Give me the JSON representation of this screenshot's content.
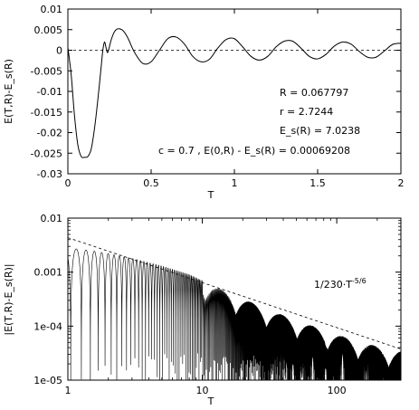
{
  "chart_data": [
    {
      "type": "line",
      "xlabel": "T",
      "ylabel": "E(T,R)-E_s(R)",
      "xlim": [
        0,
        2
      ],
      "ylim": [
        -0.03,
        0.01
      ],
      "xticks": [
        0,
        0.5,
        1,
        1.5,
        2
      ],
      "xtick_labels": [
        "0",
        "0.5",
        "1",
        "1.5",
        "2"
      ],
      "yticks": [
        0.01,
        0.005,
        0,
        -0.005,
        -0.01,
        -0.015,
        -0.02,
        -0.025,
        -0.03
      ],
      "ytick_labels": [
        "0.01",
        "0.005",
        "0",
        "-0.005",
        "-0.01",
        "-0.015",
        "-0.02",
        "-0.025",
        "-0.03"
      ],
      "grid": false,
      "reference_line": {
        "y": 0,
        "style": "dashed"
      },
      "series": [
        {
          "x": [
            0,
            0.02,
            0.04,
            0.06,
            0.08,
            0.1,
            0.12,
            0.14,
            0.16,
            0.18,
            0.2,
            0.21,
            0.22,
            0.23,
            0.24,
            0.26,
            0.28,
            0.3,
            0.33,
            0.36,
            0.4,
            0.45,
            0.5,
            0.55,
            0.6,
            0.65,
            0.7,
            0.75,
            0.8,
            0.85,
            0.9,
            0.95,
            1.0,
            1.05,
            1.1,
            1.15,
            1.2,
            1.25,
            1.3,
            1.35,
            1.4,
            1.45,
            1.5,
            1.55,
            1.6,
            1.65,
            1.7,
            1.75,
            1.8,
            1.85,
            1.9,
            1.95,
            2.0
          ],
          "y": [
            0.0007,
            -0.006,
            -0.016,
            -0.023,
            -0.0258,
            -0.026,
            -0.0258,
            -0.024,
            -0.019,
            -0.012,
            -0.004,
            0.0,
            0.002,
            0.0005,
            -0.0005,
            0.0025,
            0.0045,
            0.0052,
            0.0048,
            0.003,
            -0.0005,
            -0.0032,
            -0.0028,
            0.0,
            0.0028,
            0.0032,
            0.0015,
            -0.0015,
            -0.0028,
            -0.0022,
            0.0005,
            0.0026,
            0.0028,
            0.0008,
            -0.0015,
            -0.0024,
            -0.0015,
            0.0008,
            0.0022,
            0.0022,
            0.0005,
            -0.0015,
            -0.0021,
            -0.001,
            0.001,
            0.002,
            0.0015,
            -0.0003,
            -0.0017,
            -0.0017,
            -0.0002,
            0.0014,
            0.0017
          ]
        }
      ],
      "annotations": [
        "R = 0.067797",
        "r = 2.7244",
        "E_s(R)  = 7.0238",
        "c = 0.7  ,   E(0,R) - E_s(R)  = 0.00069208"
      ]
    },
    {
      "type": "line",
      "xlabel": "T",
      "ylabel": "|E(T,R)-E_s(R)|",
      "xscale": "log",
      "yscale": "log",
      "xlim": [
        1,
        300
      ],
      "ylim": [
        1e-05,
        0.01
      ],
      "xticks": [
        1,
        10,
        100
      ],
      "xtick_labels": [
        "1",
        "10",
        "100"
      ],
      "yticks": [
        0.01,
        0.001,
        0.0001,
        1e-05
      ],
      "ytick_labels": [
        "0.01",
        "0.001",
        "1e-04",
        "1e-05"
      ],
      "grid": false,
      "series": [
        {
          "name": "|E(T,R)-E_s(R)|",
          "style": "solid",
          "envelope_x": [
            1,
            1.5,
            2,
            3,
            5,
            8,
            12,
            20,
            35,
            60,
            100,
            200,
            300
          ],
          "envelope_y": [
            0.0028,
            0.0025,
            0.0022,
            0.0018,
            0.0013,
            0.0009,
            0.00055,
            0.00032,
            0.00018,
            0.00011,
            7e-05,
            4.2e-05,
            3.5e-05
          ]
        },
        {
          "name": "1/230·T^-5/6",
          "style": "dashed",
          "x": [
            1,
            300
          ],
          "y": [
            0.004348,
            3.76e-05
          ]
        }
      ],
      "annotations": [
        "1/230·T",
        "-5/6"
      ]
    }
  ]
}
